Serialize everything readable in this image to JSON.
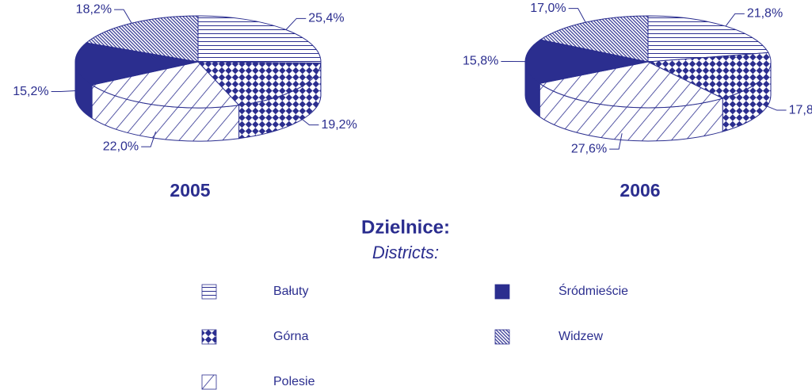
{
  "chart_data": [
    {
      "type": "pie",
      "title": "2005",
      "values": [
        25.4,
        19.2,
        22.0,
        15.2,
        18.2
      ],
      "value_labels": [
        "25,4%",
        "19,2%",
        "22,0%",
        "15,2%",
        "18,2%"
      ]
    },
    {
      "type": "pie",
      "title": "2006",
      "values": [
        21.8,
        17.8,
        27.6,
        15.8,
        17.0
      ],
      "value_labels": [
        "21,8%",
        "17,8%",
        "27,6%",
        "15,8%",
        "17,0%"
      ]
    }
  ],
  "legend": {
    "title": "Dzielnice:",
    "subtitle": "Districts:",
    "items": [
      {
        "name": "Bałuty",
        "pattern": "hlines"
      },
      {
        "name": "Górna",
        "pattern": "checker"
      },
      {
        "name": "Polesie",
        "pattern": "diag"
      },
      {
        "name": "Śródmieście",
        "pattern": "solid"
      },
      {
        "name": "Widzew",
        "pattern": "dense"
      }
    ]
  },
  "color": "#2b2e8f"
}
